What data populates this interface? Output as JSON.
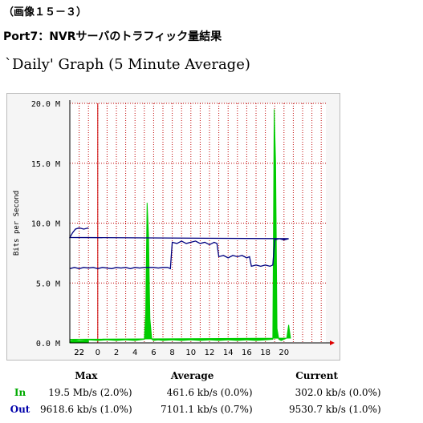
{
  "page": {
    "caption": "（画像１５－３）",
    "port_title": "Port7：NVRサーバのトラフィック量結果",
    "graph_heading": "`Daily' Graph (5 Minute Average)"
  },
  "chart_data": {
    "type": "area",
    "title": "`Daily' Graph (5 Minute Average)",
    "ylabel": "Bits per Second",
    "ylim": [
      0,
      20
    ],
    "y_unit": "M",
    "y_ticks": [
      "0.0 M",
      "5.0 M",
      "10.0 M",
      "15.0 M",
      "20.0 M"
    ],
    "x_ticks": [
      "22",
      "0",
      "2",
      "4",
      "6",
      "8",
      "10",
      "12",
      "14",
      "16",
      "18",
      "20",
      "22"
    ],
    "grid": true,
    "colors": {
      "in": "#00cc00",
      "out": "#000080",
      "now_marker": "#cc0000",
      "axis_arrow": "#dd0000"
    },
    "series": [
      {
        "name": "In",
        "x": [
          21,
          21.5,
          22,
          23,
          0,
          1,
          2,
          3,
          4,
          5,
          5.15,
          5.3,
          5.45,
          5.6,
          5.8,
          6,
          6.5,
          7,
          8,
          9,
          10,
          11,
          12,
          13,
          14,
          15,
          16,
          17,
          18,
          18.8,
          18.95,
          19.1,
          19.25,
          19.45,
          19.7,
          20,
          20.3,
          20.5,
          20.7,
          21,
          22,
          23
        ],
        "values": [
          0.2,
          0.25,
          0.2,
          0.25,
          0.2,
          0.25,
          0.2,
          0.25,
          0.2,
          0.3,
          2.5,
          11.7,
          9.0,
          2.0,
          0.3,
          0.2,
          0.25,
          0.2,
          0.25,
          0.2,
          0.25,
          0.2,
          0.25,
          0.2,
          0.25,
          0.2,
          0.25,
          0.2,
          0.25,
          0.3,
          19.5,
          15.0,
          1.2,
          0.3,
          0.2,
          0.3,
          0.4,
          1.5,
          0.4,
          0.3,
          0.3,
          0.3
        ]
      },
      {
        "name": "Out",
        "x": [
          21,
          21.5,
          22,
          22.5,
          23,
          23.5,
          0,
          0.5,
          1,
          1.5,
          2,
          2.5,
          3,
          3.5,
          4,
          4.5,
          5,
          5.5,
          6,
          6.5,
          7,
          7.5,
          7.8,
          8,
          8.5,
          9,
          9.5,
          10,
          10.5,
          11,
          11.5,
          12,
          12.5,
          12.8,
          13,
          13.5,
          14,
          14.5,
          15,
          15.5,
          16,
          16.3,
          16.5,
          17,
          17.5,
          18,
          18.5,
          18.8,
          19,
          19.5,
          20,
          20.5,
          21,
          21.3,
          21.6,
          22,
          22.5,
          23
        ],
        "values": [
          6.2,
          6.3,
          6.2,
          6.3,
          6.25,
          6.3,
          6.2,
          6.3,
          6.25,
          6.2,
          6.3,
          6.25,
          6.3,
          6.2,
          6.3,
          6.25,
          6.3,
          6.3,
          6.3,
          6.25,
          6.3,
          6.3,
          6.2,
          8.4,
          8.3,
          8.5,
          8.3,
          8.4,
          8.5,
          8.3,
          8.4,
          8.2,
          8.4,
          8.3,
          7.2,
          7.3,
          7.1,
          7.3,
          7.2,
          7.3,
          7.1,
          7.2,
          6.4,
          6.5,
          6.4,
          6.5,
          6.4,
          6.5,
          8.6,
          8.7,
          8.6,
          8.7,
          8.8,
          9.2,
          9.5,
          9.6,
          9.5,
          9.6
        ]
      }
    ]
  },
  "stats": {
    "headers": {
      "max": "Max",
      "average": "Average",
      "current": "Current"
    },
    "rows": [
      {
        "label": "In",
        "max": "19.5 Mb/s (2.0%)",
        "average": "461.6 kb/s (0.0%)",
        "current": "302.0 kb/s (0.0%)"
      },
      {
        "label": "Out",
        "max": "9618.6 kb/s (1.0%)",
        "average": "7101.1 kb/s (0.7%)",
        "current": "9530.7 kb/s (1.0%)"
      }
    ]
  }
}
